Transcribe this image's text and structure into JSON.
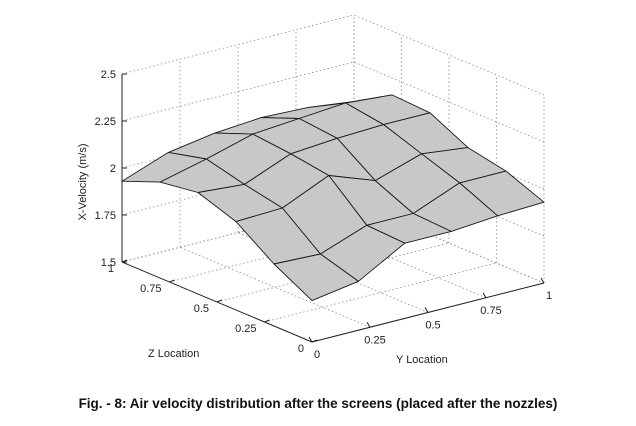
{
  "caption": "Fig. - 8: Air velocity distribution after the screens (placed after the nozzles)",
  "chart_data": {
    "type": "surface",
    "title": "",
    "xlabel": "Y Location",
    "ylabel": "Z Location",
    "zlabel": "X-Velocity (m/s)",
    "xlim": [
      0,
      1
    ],
    "ylim": [
      0,
      1
    ],
    "zlim": [
      1.5,
      2.5
    ],
    "x_ticks": [
      "0",
      "0.25",
      "0.5",
      "0.75",
      "1"
    ],
    "y_ticks": [
      "0",
      "0.25",
      "0.5",
      "0.75",
      "1"
    ],
    "z_ticks": [
      "1.5",
      "1.75",
      "2",
      "2.25",
      "2.5"
    ],
    "grid": true,
    "surface_color": "#c8c8c8",
    "y_locations": [
      0,
      0.2,
      0.4,
      0.6,
      0.8,
      1.0
    ],
    "z_locations": [
      0,
      0.2,
      0.4,
      0.6,
      0.8,
      1.0
    ],
    "x_velocity": [
      [
        1.72,
        1.76,
        1.9,
        1.9,
        1.92,
        1.93
      ],
      [
        1.83,
        1.82,
        1.91,
        1.91,
        2.01,
        2.01
      ],
      [
        1.97,
        1.98,
        2.09,
        2.0,
        2.08,
        2.05
      ],
      [
        2.04,
        2.02,
        2.12,
        2.14,
        2.15,
        2.15
      ],
      [
        2.01,
        2.07,
        2.14,
        2.16,
        2.18,
        2.16
      ],
      [
        1.93,
        2.02,
        2.06,
        2.08,
        2.07,
        2.04
      ]
    ]
  }
}
